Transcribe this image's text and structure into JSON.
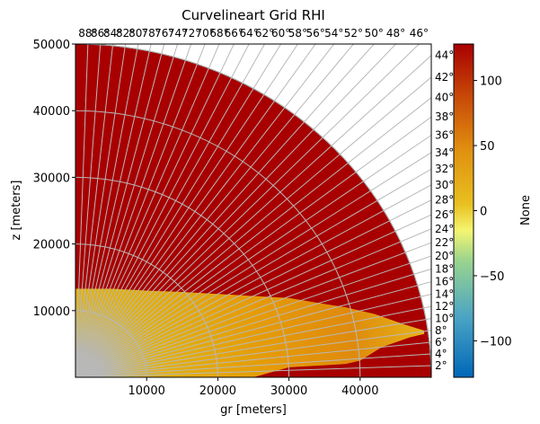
{
  "chart_data": {
    "type": "heatmap",
    "title": "Curvelineart Grid RHI",
    "xlabel": "gr [meters]",
    "ylabel": "z [meters]",
    "xlim": [
      0,
      50000
    ],
    "ylim": [
      0,
      50000
    ],
    "x_ticks": [
      10000,
      20000,
      30000,
      40000
    ],
    "y_ticks": [
      10000,
      20000,
      30000,
      40000,
      50000
    ],
    "x_tick_labels": [
      "10000",
      "20000",
      "30000",
      "40000"
    ],
    "y_tick_labels": [
      "10000",
      "20000",
      "30000",
      "40000",
      "50000"
    ],
    "max_range": 50000,
    "background_value": 128,
    "range_rings": [
      10000,
      20000,
      30000,
      40000,
      50000
    ],
    "elevation_angles": [
      2,
      4,
      6,
      8,
      10,
      12,
      14,
      16,
      18,
      20,
      22,
      24,
      26,
      28,
      30,
      32,
      34,
      36,
      38,
      40,
      42,
      44,
      46,
      48,
      50,
      52,
      54,
      56,
      58,
      60,
      62,
      64,
      66,
      68,
      70,
      72,
      74,
      76,
      78,
      80,
      82,
      84,
      86,
      88
    ],
    "right_angle_labels": [
      "2°",
      "4°",
      "6°",
      "8°",
      "10°",
      "12°",
      "14°",
      "16°",
      "18°",
      "20°",
      "22°",
      "24°",
      "26°",
      "28°",
      "30°",
      "32°",
      "34°",
      "36°",
      "38°",
      "40°",
      "42°",
      "44°"
    ],
    "top_angle_labels": [
      "46°",
      "48°",
      "50°",
      "52°",
      "54°",
      "56°",
      "58°",
      "60°",
      "62°",
      "64°",
      "66°",
      "68°",
      "70°",
      "72°",
      "74°",
      "76°",
      "78°",
      "80°",
      "82°",
      "84°",
      "86°",
      "88°"
    ],
    "echo_top_profile": [
      [
        0,
        13300
      ],
      [
        5000,
        13300
      ],
      [
        10000,
        13000
      ],
      [
        15000,
        12800
      ],
      [
        20000,
        12500
      ],
      [
        25000,
        12200
      ],
      [
        30000,
        11900
      ],
      [
        35000,
        11000
      ],
      [
        38000,
        10500
      ],
      [
        42000,
        9500
      ],
      [
        46000,
        8000
      ],
      [
        49000,
        7000
      ]
    ],
    "echo_bottom_profile": [
      [
        0,
        0
      ],
      [
        25000,
        0
      ],
      [
        30000,
        1500
      ],
      [
        35000,
        1800
      ],
      [
        38000,
        2000
      ],
      [
        40000,
        2500
      ],
      [
        43000,
        4500
      ],
      [
        47000,
        6000
      ],
      [
        49000,
        6500
      ]
    ],
    "colorbar": {
      "label": "None",
      "min": -128,
      "max": 128,
      "ticks": [
        -100,
        -50,
        0,
        50,
        100
      ],
      "tick_labels": [
        "−100",
        "−50",
        "0",
        "50",
        "100"
      ]
    }
  }
}
